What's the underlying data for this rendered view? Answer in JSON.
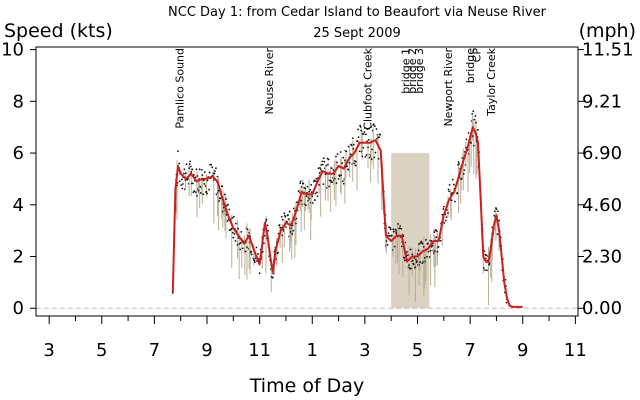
{
  "chart_data": {
    "type": "line",
    "title": "NCC Day 1: from Cedar Island to Beaufort via Neuse River",
    "subtitle": "25 Sept 2009",
    "xlabel": "Time of Day",
    "ylabel_left": "Speed  (kts)",
    "ylabel_right": "(mph)",
    "xlim": [
      2.5,
      23.1
    ],
    "ylim": [
      -0.3,
      10.1
    ],
    "x_ticks": [
      {
        "value": 3,
        "label": "3"
      },
      {
        "value": 5,
        "label": "5"
      },
      {
        "value": 7,
        "label": "7"
      },
      {
        "value": 9,
        "label": "9"
      },
      {
        "value": 11,
        "label": "11"
      },
      {
        "value": 13,
        "label": "1"
      },
      {
        "value": 15,
        "label": "3"
      },
      {
        "value": 17,
        "label": "5"
      },
      {
        "value": 19,
        "label": "7"
      },
      {
        "value": 21,
        "label": "9"
      },
      {
        "value": 23,
        "label": "11"
      }
    ],
    "y_ticks_left": [
      0,
      2,
      4,
      6,
      8,
      10
    ],
    "y_ticks_right": [
      {
        "value": 0.0,
        "label": "0.00"
      },
      {
        "value": 2.0,
        "label": "2.30"
      },
      {
        "value": 4.0,
        "label": "4.60"
      },
      {
        "value": 6.0,
        "label": "6.90"
      },
      {
        "value": 8.0,
        "label": "9.21"
      },
      {
        "value": 10.0,
        "label": "11.51"
      }
    ],
    "colors": {
      "smoothed": "#cc1f1f",
      "raw": "#111111",
      "raw_range": "#b9ad95",
      "shade": "#dcd2c1",
      "baseline": "#bbbbbb"
    },
    "shaded_region": {
      "x": [
        16.0,
        17.45
      ],
      "y": [
        0,
        6
      ]
    },
    "annotations": [
      {
        "x": 7.95,
        "label": "Pamlico Sound"
      },
      {
        "x": 11.35,
        "label": "Neuse River"
      },
      {
        "x": 15.1,
        "label": "Clubfoot Creek"
      },
      {
        "x": 16.55,
        "label": "bridge 1"
      },
      {
        "x": 16.8,
        "label": "bridge 2"
      },
      {
        "x": 17.05,
        "label": "bridge 3"
      },
      {
        "x": 18.15,
        "label": "Newport River"
      },
      {
        "x": 19.0,
        "label": "bridge"
      },
      {
        "x": 19.25,
        "label": "CP"
      },
      {
        "x": 19.8,
        "label": "Taylor Creek"
      }
    ],
    "series": [
      {
        "name": "smoothed",
        "x": [
          7.7,
          7.8,
          7.9,
          8.0,
          8.2,
          8.4,
          8.6,
          8.8,
          9.0,
          9.2,
          9.4,
          9.6,
          9.8,
          10.0,
          10.2,
          10.4,
          10.6,
          10.8,
          11.0,
          11.1,
          11.2,
          11.3,
          11.4,
          11.5,
          11.6,
          11.8,
          12.0,
          12.2,
          12.4,
          12.6,
          12.8,
          13.0,
          13.2,
          13.4,
          13.6,
          13.8,
          14.0,
          14.2,
          14.4,
          14.6,
          14.8,
          15.0,
          15.2,
          15.4,
          15.6,
          15.8,
          16.0,
          16.2,
          16.4,
          16.6,
          16.8,
          17.0,
          17.2,
          17.4,
          17.6,
          17.8,
          18.0,
          18.2,
          18.4,
          18.6,
          18.8,
          18.9,
          19.0,
          19.1,
          19.2,
          19.3,
          19.4,
          19.5,
          19.6,
          19.7,
          19.8,
          19.9,
          20.0,
          20.1,
          20.2,
          20.3,
          20.4,
          20.5,
          20.6,
          20.8,
          21.0
        ],
        "y": [
          0.6,
          4.6,
          5.5,
          5.2,
          5.0,
          5.2,
          4.9,
          5.0,
          5.0,
          5.1,
          4.9,
          4.2,
          3.6,
          3.1,
          2.8,
          2.5,
          2.8,
          2.2,
          1.7,
          2.5,
          3.3,
          2.8,
          2.0,
          1.4,
          2.2,
          3.0,
          3.3,
          3.2,
          3.8,
          4.5,
          4.4,
          4.4,
          4.9,
          5.3,
          5.2,
          5.2,
          5.5,
          5.4,
          5.8,
          6.0,
          6.4,
          6.4,
          6.4,
          6.5,
          6.1,
          2.8,
          2.6,
          2.8,
          2.8,
          1.8,
          2.0,
          2.0,
          2.2,
          2.3,
          2.6,
          2.6,
          3.6,
          4.2,
          4.5,
          5.2,
          5.9,
          6.2,
          6.6,
          7.0,
          6.8,
          6.4,
          4.2,
          2.0,
          1.8,
          1.8,
          2.4,
          3.2,
          3.6,
          3.0,
          2.0,
          1.0,
          0.4,
          0.1,
          0.05,
          0.05,
          0.05
        ]
      }
    ]
  }
}
